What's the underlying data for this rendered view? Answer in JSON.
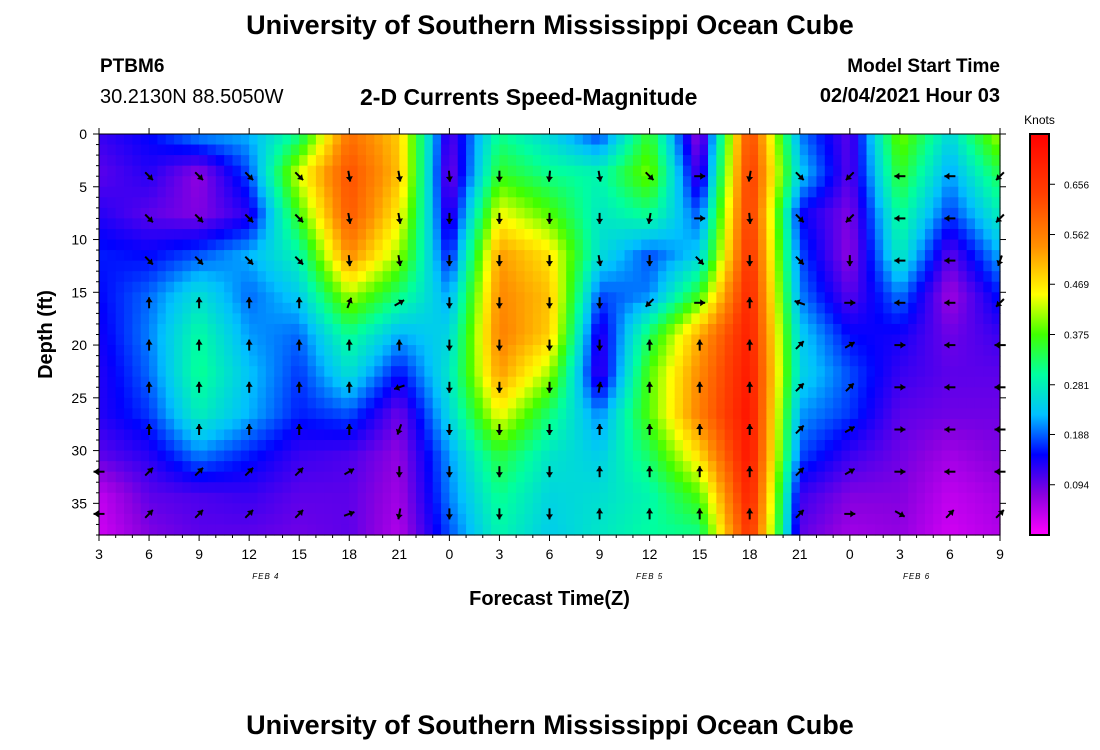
{
  "header": {
    "title": "University of Southern Mississippi Ocean Cube",
    "station_id": "PTBM6",
    "station_location": "30.2130N 88.5050W",
    "subtitle": "2-D Currents Speed-Magnitude",
    "model_start_label": "Model Start Time",
    "model_start_value": "02/04/2021 Hour 03"
  },
  "footer": {
    "title": "University of Southern Mississippi Ocean Cube"
  },
  "chart_data": {
    "type": "heatmap",
    "title": "2-D Currents Speed-Magnitude",
    "xlabel": "Forecast Time(Z)",
    "ylabel": "Depth (ft)",
    "colorbar_label": "Knots",
    "colorbar_ticks": [
      0.094,
      0.188,
      0.281,
      0.375,
      0.469,
      0.562,
      0.656
    ],
    "colorbar_range": [
      0.0,
      0.75
    ],
    "x_tick_labels": [
      "3",
      "6",
      "9",
      "12",
      "15",
      "18",
      "21",
      "0",
      "3",
      "6",
      "9",
      "12",
      "15",
      "18",
      "21",
      "0",
      "3",
      "6",
      "9"
    ],
    "x_tick_hours": [
      3,
      6,
      9,
      12,
      15,
      18,
      21,
      24,
      27,
      30,
      33,
      36,
      39,
      42,
      45,
      48,
      51,
      54,
      57
    ],
    "date_labels": [
      {
        "text": "FEB 4",
        "hour": 13
      },
      {
        "text": "FEB 5",
        "hour": 36
      },
      {
        "text": "FEB 6",
        "hour": 52
      }
    ],
    "y_ticks": [
      0,
      5,
      10,
      15,
      20,
      25,
      30,
      35
    ],
    "y_range": [
      0,
      38
    ],
    "x_range": [
      3,
      57
    ],
    "depths": [
      0,
      3.8,
      7.6,
      11.4,
      15.2,
      19,
      22.8,
      26.6,
      30.4,
      34.2,
      38
    ],
    "times": [
      3,
      6,
      9,
      12,
      15,
      18,
      21,
      24,
      27,
      30,
      33,
      36,
      39,
      42,
      45,
      48,
      51,
      54,
      57
    ],
    "speed": [
      [
        0.12,
        0.15,
        0.21,
        0.22,
        0.31,
        0.58,
        0.49,
        0.1,
        0.31,
        0.25,
        0.17,
        0.36,
        0.06,
        0.64,
        0.2,
        0.1,
        0.4,
        0.25,
        0.42
      ],
      [
        0.1,
        0.13,
        0.07,
        0.18,
        0.44,
        0.62,
        0.5,
        0.08,
        0.36,
        0.31,
        0.29,
        0.4,
        0.1,
        0.66,
        0.24,
        0.1,
        0.36,
        0.21,
        0.34
      ],
      [
        0.13,
        0.1,
        0.08,
        0.13,
        0.37,
        0.61,
        0.46,
        0.11,
        0.45,
        0.38,
        0.27,
        0.31,
        0.18,
        0.66,
        0.15,
        0.08,
        0.31,
        0.17,
        0.28
      ],
      [
        0.16,
        0.15,
        0.18,
        0.22,
        0.29,
        0.55,
        0.41,
        0.15,
        0.53,
        0.47,
        0.26,
        0.18,
        0.24,
        0.67,
        0.18,
        0.07,
        0.28,
        0.1,
        0.22
      ],
      [
        0.15,
        0.19,
        0.26,
        0.19,
        0.24,
        0.42,
        0.32,
        0.21,
        0.55,
        0.5,
        0.18,
        0.2,
        0.36,
        0.69,
        0.2,
        0.1,
        0.2,
        0.06,
        0.16
      ],
      [
        0.14,
        0.2,
        0.3,
        0.21,
        0.19,
        0.31,
        0.22,
        0.25,
        0.56,
        0.49,
        0.12,
        0.33,
        0.52,
        0.7,
        0.24,
        0.15,
        0.14,
        0.09,
        0.12
      ],
      [
        0.13,
        0.19,
        0.31,
        0.23,
        0.17,
        0.26,
        0.15,
        0.27,
        0.53,
        0.41,
        0.11,
        0.38,
        0.55,
        0.71,
        0.25,
        0.18,
        0.12,
        0.1,
        0.1
      ],
      [
        0.13,
        0.17,
        0.28,
        0.22,
        0.16,
        0.18,
        0.09,
        0.25,
        0.45,
        0.32,
        0.2,
        0.38,
        0.56,
        0.72,
        0.21,
        0.17,
        0.1,
        0.09,
        0.09
      ],
      [
        0.1,
        0.13,
        0.2,
        0.16,
        0.12,
        0.11,
        0.07,
        0.21,
        0.35,
        0.27,
        0.24,
        0.33,
        0.48,
        0.72,
        0.18,
        0.12,
        0.09,
        0.06,
        0.08
      ],
      [
        0.04,
        0.1,
        0.11,
        0.12,
        0.1,
        0.1,
        0.06,
        0.2,
        0.31,
        0.25,
        0.26,
        0.29,
        0.38,
        0.7,
        0.12,
        0.08,
        0.08,
        0.04,
        0.06
      ],
      [
        0.03,
        0.08,
        0.1,
        0.1,
        0.09,
        0.1,
        0.05,
        0.18,
        0.29,
        0.24,
        0.27,
        0.3,
        0.31,
        0.67,
        0.1,
        0.06,
        0.07,
        0.03,
        0.05
      ]
    ],
    "arrow_times": [
      3,
      6,
      9,
      12,
      15,
      18,
      21,
      24,
      27,
      30,
      33,
      36,
      39,
      42,
      45,
      48,
      51,
      54,
      57
    ],
    "arrow_depths": [
      4,
      8,
      12,
      16,
      20,
      24,
      28,
      32,
      36
    ],
    "arrow_directions_deg": [
      [
        null,
        135,
        135,
        135,
        135,
        170,
        170,
        175,
        180,
        185,
        170,
        135,
        90,
        190,
        135,
        225,
        270,
        270,
        225
      ],
      [
        null,
        135,
        135,
        135,
        135,
        170,
        170,
        180,
        180,
        180,
        180,
        190,
        90,
        175,
        135,
        225,
        270,
        270,
        225
      ],
      [
        null,
        135,
        135,
        135,
        135,
        175,
        170,
        180,
        180,
        180,
        170,
        180,
        135,
        180,
        135,
        180,
        270,
        270,
        200
      ],
      [
        null,
        0,
        0,
        0,
        0,
        20,
        60,
        180,
        180,
        180,
        180,
        225,
        90,
        0,
        290,
        90,
        270,
        270,
        225
      ],
      [
        null,
        0,
        0,
        0,
        0,
        0,
        0,
        180,
        180,
        180,
        180,
        0,
        0,
        0,
        45,
        60,
        90,
        270,
        270
      ],
      [
        null,
        0,
        0,
        0,
        0,
        0,
        250,
        180,
        180,
        180,
        10,
        0,
        0,
        0,
        45,
        45,
        90,
        270,
        270
      ],
      [
        null,
        0,
        0,
        0,
        0,
        0,
        200,
        180,
        180,
        180,
        0,
        0,
        0,
        0,
        45,
        60,
        90,
        270,
        270
      ],
      [
        270,
        45,
        45,
        45,
        45,
        60,
        180,
        180,
        180,
        180,
        0,
        0,
        0,
        0,
        45,
        60,
        90,
        270,
        270
      ],
      [
        270,
        45,
        45,
        45,
        45,
        70,
        190,
        180,
        180,
        180,
        0,
        0,
        0,
        0,
        45,
        90,
        120,
        45,
        45
      ]
    ]
  }
}
